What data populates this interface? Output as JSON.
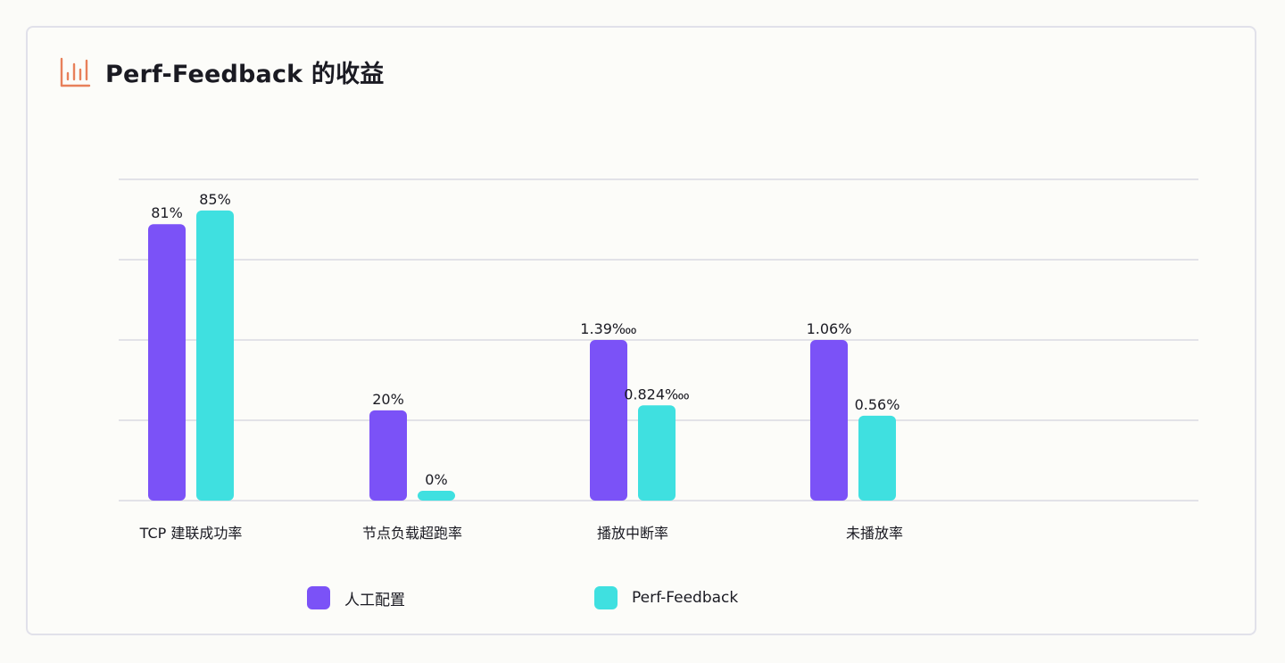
{
  "header": {
    "title": "Perf-Feedback 的收益",
    "icon": "bar-chart-icon",
    "icon_color": "#e8805a"
  },
  "chart_data": {
    "type": "bar",
    "title": "Perf-Feedback 的收益",
    "xlabel": "",
    "ylabel": "",
    "grid": true,
    "legend_position": "bottom",
    "categories": [
      "TCP 建联成功率",
      "节点负载超跑率",
      "播放中断率",
      "未播放率"
    ],
    "series": [
      {
        "name": "人工配置",
        "color": "#7b52f7",
        "values": [
          81,
          20,
          1.39,
          1.06
        ],
        "labels": [
          "81%",
          "20%",
          "1.39‱",
          "1.06%"
        ]
      },
      {
        "name": "Perf-Feedback",
        "color": "#3fe0e0",
        "values": [
          85,
          0,
          0.824,
          0.56
        ],
        "labels": [
          "85%",
          "0%",
          "0.824‱",
          "0.56%"
        ]
      }
    ],
    "notes": "Each category appears on its own (non-shared) scale in the original graphic."
  },
  "legend": {
    "items": [
      {
        "label": "人工配置",
        "color": "#7b52f7"
      },
      {
        "label": "Perf-Feedback",
        "color": "#3fe0e0"
      }
    ]
  }
}
